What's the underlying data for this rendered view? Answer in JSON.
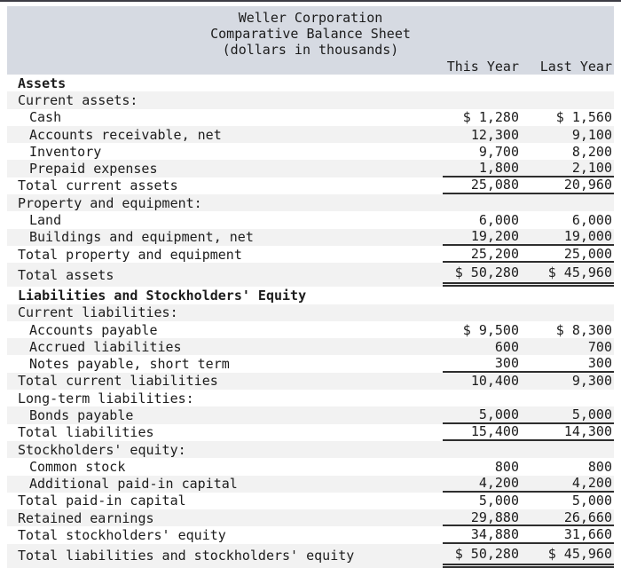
{
  "colors": {
    "page_bg": "#ffffff",
    "header_bg": "#d6dae2",
    "stripe_bg": "#f2f2f2",
    "text": "#1c1c1c",
    "rule": "#2e2e2e",
    "top_border": "#3c3c44"
  },
  "header": {
    "company": "Weller Corporation",
    "report_title": "Comparative Balance Sheet",
    "units_note": "(dollars in thousands)"
  },
  "columns": {
    "this_year": "This Year",
    "last_year": "Last Year"
  },
  "rows": [
    {
      "label": "Assets",
      "bold": true,
      "indent": 0,
      "this_year": "",
      "last_year": "",
      "rule": "none",
      "grand": false
    },
    {
      "label": "Current assets:",
      "bold": false,
      "indent": 0,
      "this_year": "",
      "last_year": "",
      "rule": "none",
      "grand": false
    },
    {
      "label": "Cash",
      "bold": false,
      "indent": 1,
      "this_year": "$ 1,280",
      "last_year": "$ 1,560",
      "rule": "none",
      "grand": false
    },
    {
      "label": "Accounts receivable, net",
      "bold": false,
      "indent": 1,
      "this_year": "12,300",
      "last_year": "9,100",
      "rule": "none",
      "grand": false
    },
    {
      "label": "Inventory",
      "bold": false,
      "indent": 1,
      "this_year": "9,700",
      "last_year": "8,200",
      "rule": "none",
      "grand": false
    },
    {
      "label": "Prepaid expenses",
      "bold": false,
      "indent": 1,
      "this_year": "1,800",
      "last_year": "2,100",
      "rule": "single",
      "grand": false
    },
    {
      "label": "Total current assets",
      "bold": false,
      "indent": 0,
      "this_year": "25,080",
      "last_year": "20,960",
      "rule": "single",
      "grand": false
    },
    {
      "label": "Property and equipment:",
      "bold": false,
      "indent": 0,
      "this_year": "",
      "last_year": "",
      "rule": "none",
      "grand": false
    },
    {
      "label": "Land",
      "bold": false,
      "indent": 1,
      "this_year": "6,000",
      "last_year": "6,000",
      "rule": "none",
      "grand": false
    },
    {
      "label": "Buildings and equipment, net",
      "bold": false,
      "indent": 1,
      "this_year": "19,200",
      "last_year": "19,000",
      "rule": "single",
      "grand": false
    },
    {
      "label": "Total property and equipment",
      "bold": false,
      "indent": 0,
      "this_year": "25,200",
      "last_year": "25,000",
      "rule": "single",
      "grand": false
    },
    {
      "label": "Total assets",
      "bold": false,
      "indent": 0,
      "this_year": "$ 50,280",
      "last_year": "$ 45,960",
      "rule": "double",
      "grand": true
    },
    {
      "label": "Liabilities and Stockholders' Equity",
      "bold": true,
      "indent": 0,
      "this_year": "",
      "last_year": "",
      "rule": "none",
      "grand": false
    },
    {
      "label": "Current liabilities:",
      "bold": false,
      "indent": 0,
      "this_year": "",
      "last_year": "",
      "rule": "none",
      "grand": false
    },
    {
      "label": "Accounts payable",
      "bold": false,
      "indent": 1,
      "this_year": "$ 9,500",
      "last_year": "$ 8,300",
      "rule": "none",
      "grand": false
    },
    {
      "label": "Accrued liabilities",
      "bold": false,
      "indent": 1,
      "this_year": "600",
      "last_year": "700",
      "rule": "none",
      "grand": false
    },
    {
      "label": "Notes payable, short term",
      "bold": false,
      "indent": 1,
      "this_year": "300",
      "last_year": "300",
      "rule": "single",
      "grand": false
    },
    {
      "label": "Total current liabilities",
      "bold": false,
      "indent": 0,
      "this_year": "10,400",
      "last_year": "9,300",
      "rule": "none",
      "grand": false
    },
    {
      "label": "Long-term liabilities:",
      "bold": false,
      "indent": 0,
      "this_year": "",
      "last_year": "",
      "rule": "none",
      "grand": false
    },
    {
      "label": "Bonds payable",
      "bold": false,
      "indent": 1,
      "this_year": "5,000",
      "last_year": "5,000",
      "rule": "single",
      "grand": false
    },
    {
      "label": "Total liabilities",
      "bold": false,
      "indent": 0,
      "this_year": "15,400",
      "last_year": "14,300",
      "rule": "single",
      "grand": false
    },
    {
      "label": "Stockholders' equity:",
      "bold": false,
      "indent": 0,
      "this_year": "",
      "last_year": "",
      "rule": "none",
      "grand": false
    },
    {
      "label": "Common stock",
      "bold": false,
      "indent": 1,
      "this_year": "800",
      "last_year": "800",
      "rule": "none",
      "grand": false
    },
    {
      "label": "Additional paid-in capital",
      "bold": false,
      "indent": 1,
      "this_year": "4,200",
      "last_year": "4,200",
      "rule": "single",
      "grand": false
    },
    {
      "label": "Total paid-in capital",
      "bold": false,
      "indent": 0,
      "this_year": "5,000",
      "last_year": "5,000",
      "rule": "none",
      "grand": false
    },
    {
      "label": "Retained earnings",
      "bold": false,
      "indent": 0,
      "this_year": "29,880",
      "last_year": "26,660",
      "rule": "single",
      "grand": false
    },
    {
      "label": "Total stockholders' equity",
      "bold": false,
      "indent": 0,
      "this_year": "34,880",
      "last_year": "31,660",
      "rule": "single",
      "grand": false
    },
    {
      "label": "Total liabilities and stockholders' equity",
      "bold": false,
      "indent": 0,
      "this_year": "$ 50,280",
      "last_year": "$ 45,960",
      "rule": "double",
      "grand": true
    }
  ]
}
